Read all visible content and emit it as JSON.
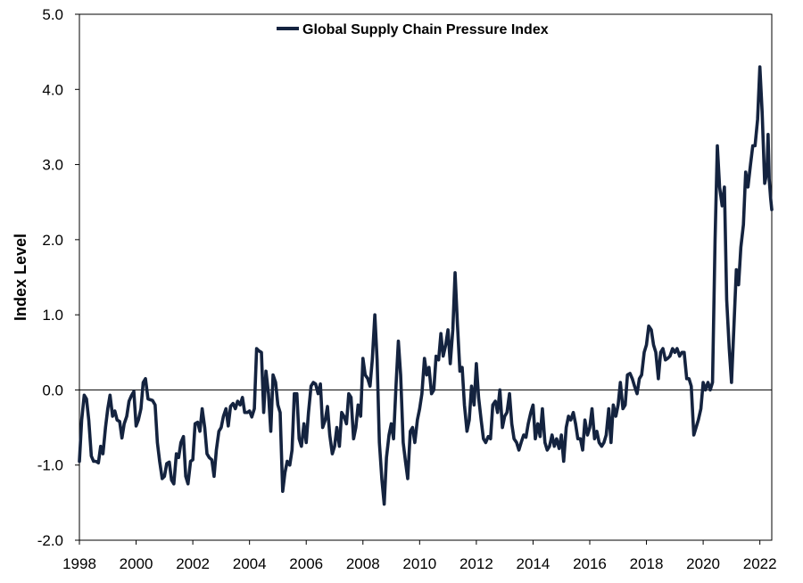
{
  "chart_data": {
    "type": "line",
    "title": "",
    "xlabel": "",
    "ylabel": "Index Level",
    "ylim": [
      -2.0,
      5.0
    ],
    "xlim": [
      1998.0,
      2022.42
    ],
    "y_ticks": [
      "-2.0",
      "-1.0",
      "0.0",
      "1.0",
      "2.0",
      "3.0",
      "4.0",
      "5.0"
    ],
    "x_ticks": [
      "1998",
      "2000",
      "2002",
      "2004",
      "2006",
      "2008",
      "2010",
      "2012",
      "2014",
      "2016",
      "2018",
      "2020",
      "2022"
    ],
    "grid": false,
    "zero_line": true,
    "legend_position": "top-center",
    "series": [
      {
        "name": "Global Supply Chain Pressure Index",
        "color": "#14233f",
        "points": [
          [
            1998.0,
            -0.95
          ],
          [
            1998.08,
            -0.4
          ],
          [
            1998.17,
            -0.07
          ],
          [
            1998.25,
            -0.12
          ],
          [
            1998.33,
            -0.4
          ],
          [
            1998.42,
            -0.88
          ],
          [
            1998.5,
            -0.95
          ],
          [
            1998.58,
            -0.95
          ],
          [
            1998.67,
            -0.97
          ],
          [
            1998.75,
            -0.75
          ],
          [
            1998.83,
            -0.85
          ],
          [
            1998.92,
            -0.5
          ],
          [
            1999.0,
            -0.25
          ],
          [
            1999.08,
            -0.07
          ],
          [
            1999.17,
            -0.35
          ],
          [
            1999.25,
            -0.28
          ],
          [
            1999.33,
            -0.4
          ],
          [
            1999.42,
            -0.42
          ],
          [
            1999.5,
            -0.64
          ],
          [
            1999.58,
            -0.45
          ],
          [
            1999.67,
            -0.35
          ],
          [
            1999.75,
            -0.15
          ],
          [
            1999.83,
            -0.08
          ],
          [
            1999.92,
            -0.02
          ],
          [
            2000.0,
            -0.48
          ],
          [
            2000.08,
            -0.4
          ],
          [
            2000.17,
            -0.25
          ],
          [
            2000.25,
            0.1
          ],
          [
            2000.33,
            0.15
          ],
          [
            2000.42,
            -0.12
          ],
          [
            2000.5,
            -0.13
          ],
          [
            2000.58,
            -0.14
          ],
          [
            2000.67,
            -0.2
          ],
          [
            2000.75,
            -0.7
          ],
          [
            2000.83,
            -0.95
          ],
          [
            2000.92,
            -1.18
          ],
          [
            2001.0,
            -1.15
          ],
          [
            2001.08,
            -0.98
          ],
          [
            2001.17,
            -0.96
          ],
          [
            2001.25,
            -1.2
          ],
          [
            2001.33,
            -1.25
          ],
          [
            2001.42,
            -0.85
          ],
          [
            2001.5,
            -0.9
          ],
          [
            2001.58,
            -0.7
          ],
          [
            2001.67,
            -0.62
          ],
          [
            2001.75,
            -1.15
          ],
          [
            2001.83,
            -1.25
          ],
          [
            2001.92,
            -0.95
          ],
          [
            2002.0,
            -0.93
          ],
          [
            2002.08,
            -0.45
          ],
          [
            2002.17,
            -0.43
          ],
          [
            2002.25,
            -0.55
          ],
          [
            2002.33,
            -0.25
          ],
          [
            2002.42,
            -0.5
          ],
          [
            2002.5,
            -0.85
          ],
          [
            2002.58,
            -0.9
          ],
          [
            2002.67,
            -0.93
          ],
          [
            2002.75,
            -1.15
          ],
          [
            2002.83,
            -0.8
          ],
          [
            2002.92,
            -0.55
          ],
          [
            2003.0,
            -0.5
          ],
          [
            2003.08,
            -0.35
          ],
          [
            2003.17,
            -0.25
          ],
          [
            2003.25,
            -0.48
          ],
          [
            2003.33,
            -0.22
          ],
          [
            2003.42,
            -0.18
          ],
          [
            2003.5,
            -0.25
          ],
          [
            2003.58,
            -0.15
          ],
          [
            2003.67,
            -0.2
          ],
          [
            2003.75,
            -0.1
          ],
          [
            2003.83,
            -0.3
          ],
          [
            2003.92,
            -0.3
          ],
          [
            2004.0,
            -0.28
          ],
          [
            2004.08,
            -0.36
          ],
          [
            2004.17,
            -0.25
          ],
          [
            2004.25,
            0.55
          ],
          [
            2004.33,
            0.52
          ],
          [
            2004.42,
            0.5
          ],
          [
            2004.5,
            -0.3
          ],
          [
            2004.58,
            0.25
          ],
          [
            2004.67,
            -0.05
          ],
          [
            2004.75,
            -0.55
          ],
          [
            2004.83,
            0.2
          ],
          [
            2004.92,
            0.1
          ],
          [
            2005.0,
            -0.2
          ],
          [
            2005.08,
            -0.3
          ],
          [
            2005.17,
            -1.35
          ],
          [
            2005.25,
            -1.1
          ],
          [
            2005.33,
            -0.95
          ],
          [
            2005.42,
            -1.0
          ],
          [
            2005.5,
            -0.8
          ],
          [
            2005.58,
            -0.05
          ],
          [
            2005.67,
            -0.05
          ],
          [
            2005.75,
            -0.65
          ],
          [
            2005.83,
            -0.75
          ],
          [
            2005.92,
            -0.45
          ],
          [
            2006.0,
            -0.7
          ],
          [
            2006.08,
            -0.3
          ],
          [
            2006.17,
            0.05
          ],
          [
            2006.25,
            0.1
          ],
          [
            2006.33,
            0.08
          ],
          [
            2006.42,
            -0.05
          ],
          [
            2006.5,
            0.08
          ],
          [
            2006.58,
            -0.5
          ],
          [
            2006.67,
            -0.4
          ],
          [
            2006.75,
            -0.22
          ],
          [
            2006.83,
            -0.6
          ],
          [
            2006.92,
            -0.85
          ],
          [
            2007.0,
            -0.75
          ],
          [
            2007.08,
            -0.5
          ],
          [
            2007.17,
            -0.75
          ],
          [
            2007.25,
            -0.3
          ],
          [
            2007.33,
            -0.35
          ],
          [
            2007.42,
            -0.45
          ],
          [
            2007.5,
            -0.05
          ],
          [
            2007.58,
            -0.1
          ],
          [
            2007.67,
            -0.65
          ],
          [
            2007.75,
            -0.5
          ],
          [
            2007.83,
            -0.2
          ],
          [
            2007.92,
            -0.35
          ],
          [
            2008.0,
            0.42
          ],
          [
            2008.08,
            0.2
          ],
          [
            2008.17,
            0.15
          ],
          [
            2008.25,
            0.05
          ],
          [
            2008.33,
            0.4
          ],
          [
            2008.42,
            1.0
          ],
          [
            2008.5,
            0.4
          ],
          [
            2008.58,
            -0.7
          ],
          [
            2008.67,
            -1.2
          ],
          [
            2008.75,
            -1.52
          ],
          [
            2008.83,
            -0.9
          ],
          [
            2008.92,
            -0.6
          ],
          [
            2009.0,
            -0.45
          ],
          [
            2009.08,
            -0.65
          ],
          [
            2009.17,
            0.08
          ],
          [
            2009.25,
            0.65
          ],
          [
            2009.33,
            0.2
          ],
          [
            2009.42,
            -0.7
          ],
          [
            2009.5,
            -0.95
          ],
          [
            2009.58,
            -1.18
          ],
          [
            2009.67,
            -0.55
          ],
          [
            2009.75,
            -0.5
          ],
          [
            2009.83,
            -0.7
          ],
          [
            2009.92,
            -0.4
          ],
          [
            2010.0,
            -0.25
          ],
          [
            2010.08,
            -0.05
          ],
          [
            2010.17,
            0.42
          ],
          [
            2010.25,
            0.2
          ],
          [
            2010.33,
            0.3
          ],
          [
            2010.42,
            -0.05
          ],
          [
            2010.5,
            0.0
          ],
          [
            2010.58,
            0.45
          ],
          [
            2010.67,
            0.4
          ],
          [
            2010.75,
            0.75
          ],
          [
            2010.83,
            0.45
          ],
          [
            2010.92,
            0.6
          ],
          [
            2011.0,
            0.8
          ],
          [
            2011.08,
            0.35
          ],
          [
            2011.17,
            0.8
          ],
          [
            2011.25,
            1.56
          ],
          [
            2011.33,
            0.9
          ],
          [
            2011.42,
            0.25
          ],
          [
            2011.5,
            0.3
          ],
          [
            2011.58,
            -0.2
          ],
          [
            2011.67,
            -0.55
          ],
          [
            2011.75,
            -0.4
          ],
          [
            2011.83,
            0.05
          ],
          [
            2011.92,
            -0.2
          ],
          [
            2012.0,
            0.35
          ],
          [
            2012.08,
            -0.1
          ],
          [
            2012.17,
            -0.4
          ],
          [
            2012.25,
            -0.65
          ],
          [
            2012.33,
            -0.7
          ],
          [
            2012.42,
            -0.62
          ],
          [
            2012.5,
            -0.65
          ],
          [
            2012.58,
            -0.2
          ],
          [
            2012.67,
            -0.15
          ],
          [
            2012.75,
            -0.3
          ],
          [
            2012.83,
            0.0
          ],
          [
            2012.92,
            -0.5
          ],
          [
            2013.0,
            -0.35
          ],
          [
            2013.08,
            -0.3
          ],
          [
            2013.17,
            -0.05
          ],
          [
            2013.25,
            -0.45
          ],
          [
            2013.33,
            -0.65
          ],
          [
            2013.42,
            -0.7
          ],
          [
            2013.5,
            -0.8
          ],
          [
            2013.58,
            -0.7
          ],
          [
            2013.67,
            -0.6
          ],
          [
            2013.75,
            -0.63
          ],
          [
            2013.83,
            -0.45
          ],
          [
            2013.92,
            -0.3
          ],
          [
            2014.0,
            -0.2
          ],
          [
            2014.08,
            -0.65
          ],
          [
            2014.17,
            -0.45
          ],
          [
            2014.25,
            -0.62
          ],
          [
            2014.33,
            -0.25
          ],
          [
            2014.42,
            -0.7
          ],
          [
            2014.5,
            -0.8
          ],
          [
            2014.58,
            -0.75
          ],
          [
            2014.67,
            -0.6
          ],
          [
            2014.75,
            -0.75
          ],
          [
            2014.83,
            -0.65
          ],
          [
            2014.92,
            -0.78
          ],
          [
            2015.0,
            -0.6
          ],
          [
            2015.08,
            -0.95
          ],
          [
            2015.17,
            -0.5
          ],
          [
            2015.25,
            -0.35
          ],
          [
            2015.33,
            -0.4
          ],
          [
            2015.42,
            -0.3
          ],
          [
            2015.5,
            -0.45
          ],
          [
            2015.58,
            -0.65
          ],
          [
            2015.67,
            -0.65
          ],
          [
            2015.75,
            -0.8
          ],
          [
            2015.83,
            -0.4
          ],
          [
            2015.92,
            -0.6
          ],
          [
            2016.0,
            -0.5
          ],
          [
            2016.08,
            -0.25
          ],
          [
            2016.17,
            -0.65
          ],
          [
            2016.25,
            -0.55
          ],
          [
            2016.33,
            -0.7
          ],
          [
            2016.42,
            -0.75
          ],
          [
            2016.5,
            -0.7
          ],
          [
            2016.58,
            -0.6
          ],
          [
            2016.67,
            -0.25
          ],
          [
            2016.75,
            -0.7
          ],
          [
            2016.83,
            -0.2
          ],
          [
            2016.92,
            -0.35
          ],
          [
            2017.0,
            -0.2
          ],
          [
            2017.08,
            0.1
          ],
          [
            2017.17,
            -0.25
          ],
          [
            2017.25,
            -0.2
          ],
          [
            2017.33,
            0.2
          ],
          [
            2017.42,
            0.22
          ],
          [
            2017.5,
            0.15
          ],
          [
            2017.58,
            0.05
          ],
          [
            2017.67,
            -0.05
          ],
          [
            2017.75,
            0.15
          ],
          [
            2017.83,
            0.2
          ],
          [
            2017.92,
            0.5
          ],
          [
            2018.0,
            0.6
          ],
          [
            2018.08,
            0.85
          ],
          [
            2018.17,
            0.8
          ],
          [
            2018.25,
            0.6
          ],
          [
            2018.33,
            0.5
          ],
          [
            2018.42,
            0.15
          ],
          [
            2018.5,
            0.5
          ],
          [
            2018.58,
            0.55
          ],
          [
            2018.67,
            0.4
          ],
          [
            2018.75,
            0.42
          ],
          [
            2018.83,
            0.45
          ],
          [
            2018.92,
            0.55
          ],
          [
            2019.0,
            0.5
          ],
          [
            2019.08,
            0.55
          ],
          [
            2019.17,
            0.45
          ],
          [
            2019.25,
            0.5
          ],
          [
            2019.33,
            0.5
          ],
          [
            2019.42,
            0.15
          ],
          [
            2019.5,
            0.15
          ],
          [
            2019.58,
            0.05
          ],
          [
            2019.67,
            -0.6
          ],
          [
            2019.75,
            -0.5
          ],
          [
            2019.83,
            -0.4
          ],
          [
            2019.92,
            -0.25
          ],
          [
            2020.0,
            0.1
          ],
          [
            2020.08,
            0.0
          ],
          [
            2020.17,
            0.1
          ],
          [
            2020.25,
            0.0
          ],
          [
            2020.33,
            0.1
          ],
          [
            2020.42,
            2.0
          ],
          [
            2020.5,
            3.25
          ],
          [
            2020.58,
            2.7
          ],
          [
            2020.67,
            2.45
          ],
          [
            2020.75,
            2.7
          ],
          [
            2020.83,
            1.2
          ],
          [
            2020.92,
            0.55
          ],
          [
            2021.0,
            0.1
          ],
          [
            2021.08,
            0.8
          ],
          [
            2021.17,
            1.6
          ],
          [
            2021.25,
            1.4
          ],
          [
            2021.33,
            1.9
          ],
          [
            2021.42,
            2.2
          ],
          [
            2021.5,
            2.9
          ],
          [
            2021.58,
            2.7
          ],
          [
            2021.67,
            3.0
          ],
          [
            2021.75,
            3.25
          ],
          [
            2021.83,
            3.25
          ],
          [
            2021.92,
            3.6
          ],
          [
            2022.0,
            4.3
          ],
          [
            2022.08,
            3.7
          ],
          [
            2022.17,
            2.75
          ],
          [
            2022.25,
            2.9
          ],
          [
            2022.29,
            3.4
          ],
          [
            2022.33,
            2.8
          ],
          [
            2022.38,
            2.55
          ],
          [
            2022.42,
            2.4
          ]
        ]
      }
    ]
  }
}
